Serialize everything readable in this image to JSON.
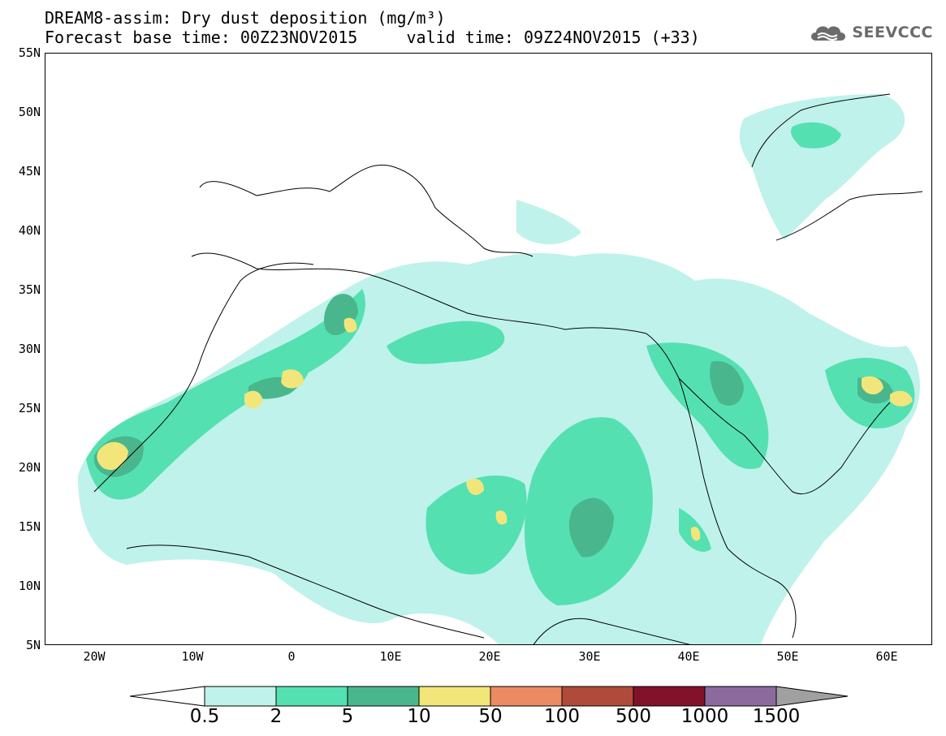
{
  "header": {
    "title_line1": "DREAM8-assim: Dry dust deposition (mg/m³)",
    "title_line2": "Forecast base time: 00Z23NOV2015     valid time: 09Z24NOV2015 (+33)",
    "brand": "SEEVCCC",
    "brand_icon": "cloud-logo-icon"
  },
  "map": {
    "lat_labels": [
      "55N",
      "50N",
      "45N",
      "40N",
      "35N",
      "30N",
      "25N",
      "20N",
      "15N",
      "10N",
      "5N"
    ],
    "lon_labels": [
      "20W",
      "10W",
      "0",
      "10E",
      "20E",
      "30E",
      "40E",
      "50E",
      "60E"
    ]
  },
  "legend": {
    "labels": [
      "0.5",
      "2",
      "5",
      "10",
      "50",
      "100",
      "500",
      "1000",
      "1500"
    ],
    "colors": [
      "#bff2ea",
      "#55e0b2",
      "#4ab68e",
      "#f2e67a",
      "#ec8a63",
      "#b04a3a",
      "#82122a",
      "#8c6a9e"
    ],
    "low_end_color": "#ffffff",
    "high_end_color": "#a0a0a0"
  },
  "colors": {
    "level1": "#bff2ea",
    "level2": "#55e0b2",
    "level3": "#4ab68e",
    "level4": "#f2e67a",
    "coastline": "#000000"
  }
}
